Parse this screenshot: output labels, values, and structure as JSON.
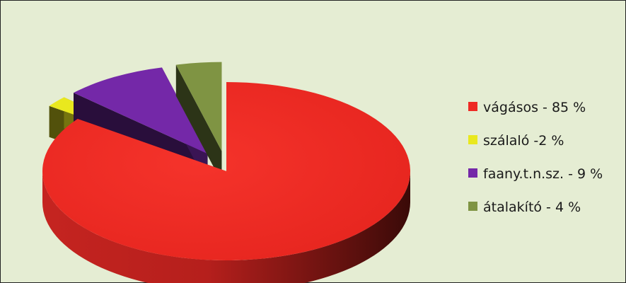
{
  "colors": {
    "background": "#e5edd3",
    "vagasos": "#ee2a24",
    "szalalo": "#e9e81e",
    "faany": "#7428a8",
    "atalakito": "#7f9443"
  },
  "chart_data": {
    "type": "pie",
    "three_d": true,
    "exploded": true,
    "legend_position": "right",
    "slices": [
      {
        "label": "vágásos - 85 %",
        "value": 85,
        "color": "#ee2a24"
      },
      {
        "label": "szálaló -2 %",
        "value": 2,
        "color": "#e9e81e"
      },
      {
        "label": "faany.t.n.sz. - 9 %",
        "value": 9,
        "color": "#7428a8"
      },
      {
        "label": "átalakító - 4 %",
        "value": 4,
        "color": "#7f9443"
      }
    ]
  }
}
